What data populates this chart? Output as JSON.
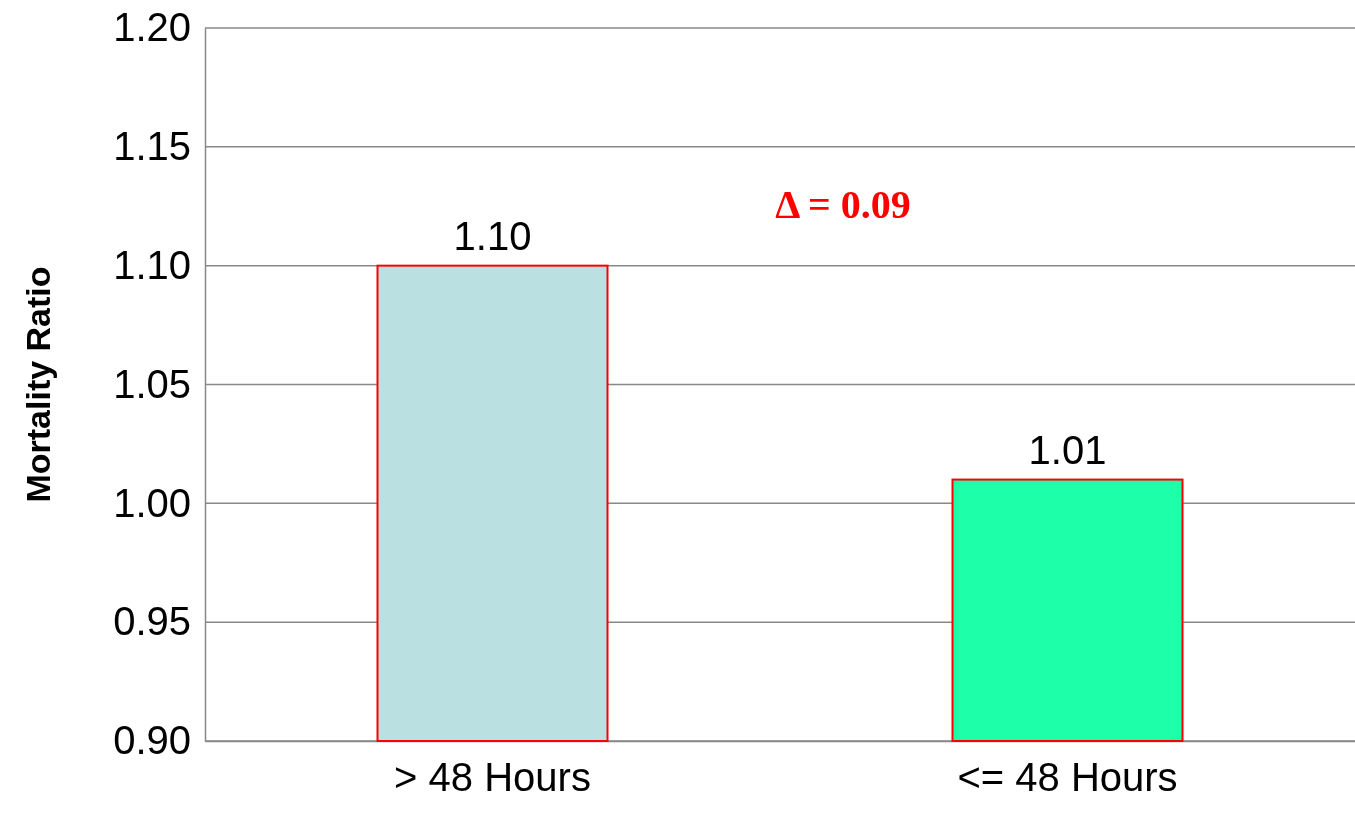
{
  "chart_data": {
    "type": "bar",
    "ylabel": "Mortality Ratio",
    "categories": [
      "> 48 Hours",
      "<= 48 Hours"
    ],
    "values": [
      1.1,
      1.01
    ],
    "colors": [
      "#bae0e2",
      "#1effa9"
    ],
    "value_labels": [
      "1.10",
      "1.01"
    ],
    "ylim": [
      0.9,
      1.2
    ],
    "yticks": [
      {
        "value": 0.9,
        "label": "0.90"
      },
      {
        "value": 0.95,
        "label": "0.95"
      },
      {
        "value": 1.0,
        "label": "1.00"
      },
      {
        "value": 1.05,
        "label": "1.05"
      },
      {
        "value": 1.1,
        "label": "1.10"
      },
      {
        "value": 1.15,
        "label": "1.15"
      },
      {
        "value": 1.2,
        "label": "1.20"
      }
    ],
    "grid": "y",
    "annotations": [
      "Δ = 0.09"
    ]
  }
}
